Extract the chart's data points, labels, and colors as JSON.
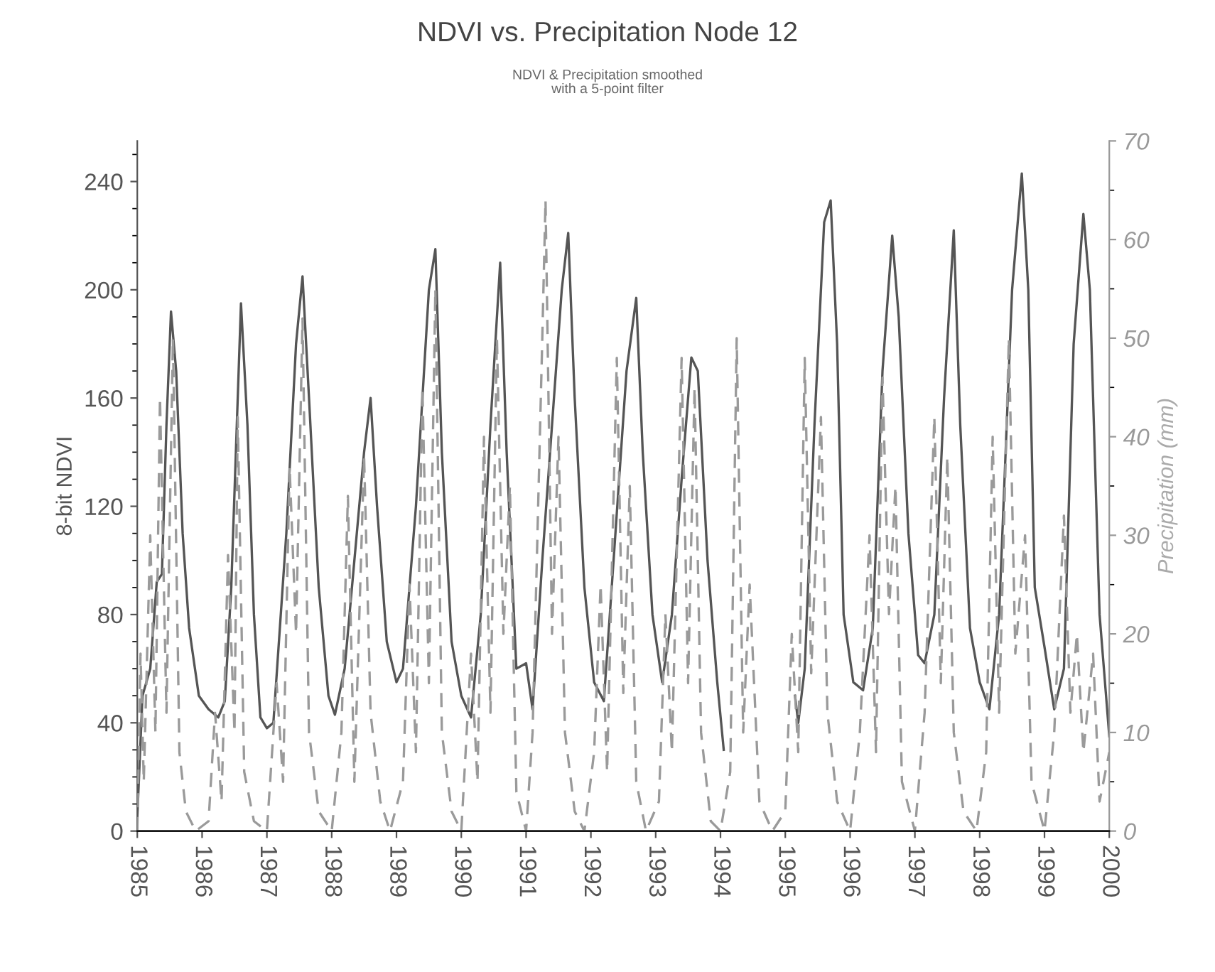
{
  "chart_data": {
    "type": "line",
    "title": "NDVI vs. Precipitation Node 12",
    "subtitle": "NDVI & Precipitation smoothed\nwith a 5-point filter",
    "ylabel": "8-bit NDVI",
    "y2label": "Precipitation (mm)",
    "xlim": [
      1985,
      2000
    ],
    "xticks": [
      1985,
      1986,
      1987,
      1988,
      1989,
      1990,
      1991,
      1992,
      1993,
      1994,
      1995,
      1996,
      1997,
      1998,
      1999,
      2000
    ],
    "ylim": [
      0,
      255
    ],
    "yticks": [
      0,
      {
        "value": 10,
        "label": null
      },
      {
        "value": 20,
        "label": null
      },
      {
        "value": 30,
        "label": null
      },
      40,
      {
        "value": 50,
        "label": null
      },
      {
        "value": 60,
        "label": null
      },
      {
        "value": 70,
        "label": null
      },
      80,
      {
        "value": 90,
        "label": null
      },
      {
        "value": 100,
        "label": null
      },
      {
        "value": 110,
        "label": null
      },
      120,
      {
        "value": 130,
        "label": null
      },
      {
        "value": 140,
        "label": null
      },
      {
        "value": 150,
        "label": null
      },
      160,
      {
        "value": 170,
        "label": null
      },
      {
        "value": 180,
        "label": null
      },
      {
        "value": 190,
        "label": null
      },
      200,
      {
        "value": 210,
        "label": null
      },
      {
        "value": 220,
        "label": null
      },
      {
        "value": 230,
        "label": null
      },
      240,
      {
        "value": 250,
        "label": null
      }
    ],
    "y2lim": [
      0,
      70
    ],
    "y2ticks": [
      0,
      {
        "value": 5,
        "label": null
      },
      10,
      {
        "value": 15,
        "label": null
      },
      20,
      {
        "value": 25,
        "label": null
      },
      30,
      {
        "value": 35,
        "label": null
      },
      40,
      {
        "value": 45,
        "label": null
      },
      50,
      {
        "value": 55,
        "label": null
      },
      60,
      {
        "value": 65,
        "label": null
      },
      70
    ],
    "grid": false,
    "legend": false,
    "marker": "none",
    "series": [
      {
        "color": "#555555",
        "line_style": "solid",
        "x": [
          1985.0,
          1985.08,
          1985.2,
          1985.3,
          1985.38,
          1985.45,
          1985.52,
          1985.6,
          1985.7,
          1985.8,
          1985.95,
          1986.1,
          1986.25,
          1986.35,
          1986.45,
          1986.6,
          1986.7,
          1986.8,
          1986.9,
          1987.0,
          1987.1,
          1987.3,
          1987.45,
          1987.55,
          1987.65,
          1987.8,
          1987.95,
          1988.05,
          1988.2,
          1988.35,
          1988.5,
          1988.6,
          1988.7,
          1988.85,
          1989.0,
          1989.1,
          1989.3,
          1989.5,
          1989.6,
          1989.7,
          1989.85,
          1990.0,
          1990.15,
          1990.3,
          1990.45,
          1990.6,
          1990.7,
          1990.85,
          1991.0,
          1991.1,
          1991.25,
          1991.4,
          1991.55,
          1991.65,
          1991.75,
          1991.9,
          1992.05,
          1992.2,
          1992.35,
          1992.55,
          1992.7,
          1992.8,
          1992.95,
          1993.1,
          1993.25,
          1993.4,
          1993.55,
          1993.65,
          1993.8,
          1993.95,
          1994.05,
          1994.6,
          1995.15,
          1995.2,
          1995.3,
          1995.45,
          1995.6,
          1995.7,
          1995.8,
          1995.9,
          1996.05,
          1996.2,
          1996.35,
          1996.5,
          1996.65,
          1996.75,
          1996.9,
          1997.05,
          1997.15,
          1997.3,
          1997.45,
          1997.6,
          1997.7,
          1997.85,
          1998.0,
          1998.15,
          1998.3,
          1998.5,
          1998.65,
          1998.75,
          1998.85,
          1999.0,
          1999.15,
          1999.3,
          1999.45,
          1999.6,
          1999.7,
          1999.85,
          2000.0
        ],
        "values": [
          5,
          50,
          60,
          92,
          95,
          150,
          192,
          170,
          110,
          75,
          50,
          45,
          42,
          48,
          90,
          195,
          150,
          80,
          42,
          38,
          40,
          110,
          180,
          205,
          160,
          90,
          50,
          43,
          60,
          100,
          140,
          160,
          120,
          70,
          55,
          60,
          120,
          200,
          215,
          140,
          70,
          50,
          42,
          80,
          150,
          210,
          140,
          60,
          62,
          45,
          100,
          150,
          200,
          221,
          160,
          90,
          55,
          48,
          100,
          170,
          197,
          140,
          80,
          55,
          80,
          130,
          175,
          170,
          100,
          55,
          30,
          null,
          50,
          40,
          60,
          150,
          225,
          233,
          180,
          80,
          55,
          52,
          75,
          170,
          220,
          190,
          110,
          65,
          62,
          80,
          160,
          222,
          150,
          75,
          55,
          45,
          80,
          200,
          243,
          200,
          90,
          68,
          45,
          60,
          180,
          228,
          200,
          80,
          35
        ]
      },
      {
        "color": "#9a9a9a",
        "line_style": "dashed",
        "axis": "y2",
        "x": [
          1985.0,
          1985.05,
          1985.1,
          1985.2,
          1985.28,
          1985.35,
          1985.45,
          1985.55,
          1985.65,
          1985.75,
          1985.9,
          1986.1,
          1986.2,
          1986.3,
          1986.4,
          1986.5,
          1986.55,
          1986.65,
          1986.8,
          1987.0,
          1987.15,
          1987.25,
          1987.35,
          1987.45,
          1987.55,
          1987.65,
          1987.8,
          1988.0,
          1988.15,
          1988.25,
          1988.35,
          1988.5,
          1988.6,
          1988.75,
          1988.9,
          1989.1,
          1989.2,
          1989.3,
          1989.4,
          1989.5,
          1989.6,
          1989.7,
          1989.85,
          1990.0,
          1990.15,
          1990.25,
          1990.35,
          1990.45,
          1990.55,
          1990.65,
          1990.75,
          1990.85,
          1991.0,
          1991.1,
          1991.25,
          1991.3,
          1991.4,
          1991.5,
          1991.6,
          1991.75,
          1991.9,
          1992.05,
          1992.15,
          1992.25,
          1992.4,
          1992.5,
          1992.6,
          1992.7,
          1992.85,
          1993.05,
          1993.15,
          1993.25,
          1993.4,
          1993.5,
          1993.6,
          1993.7,
          1993.85,
          1994.0,
          1994.15,
          1994.25,
          1994.35,
          1994.45,
          1994.6,
          1994.8,
          1995.0,
          1995.1,
          1995.2,
          1995.3,
          1995.4,
          1995.55,
          1995.65,
          1995.8,
          1996.0,
          1996.15,
          1996.3,
          1996.4,
          1996.5,
          1996.6,
          1996.7,
          1996.8,
          1997.0,
          1997.15,
          1997.3,
          1997.4,
          1997.5,
          1997.6,
          1997.75,
          1997.95,
          1998.1,
          1998.2,
          1998.3,
          1998.45,
          1998.55,
          1998.7,
          1998.8,
          1999.0,
          1999.15,
          1999.3,
          1999.4,
          1999.5,
          1999.6,
          1999.75,
          1999.85,
          2000.0
        ],
        "values": [
          0,
          18,
          5,
          30,
          10,
          44,
          12,
          50,
          8,
          2,
          0,
          1,
          12,
          3,
          28,
          10,
          42,
          6,
          1,
          0,
          15,
          5,
          37,
          20,
          52,
          10,
          2,
          0,
          10,
          34,
          5,
          38,
          12,
          3,
          0,
          5,
          25,
          8,
          45,
          15,
          55,
          10,
          2,
          0,
          18,
          5,
          40,
          12,
          50,
          20,
          35,
          4,
          0,
          10,
          50,
          64,
          20,
          40,
          10,
          2,
          0,
          8,
          25,
          6,
          48,
          14,
          35,
          5,
          0,
          3,
          22,
          8,
          48,
          15,
          45,
          10,
          1,
          0,
          6,
          50,
          10,
          25,
          3,
          0,
          2,
          20,
          8,
          48,
          16,
          42,
          12,
          3,
          0,
          10,
          30,
          8,
          46,
          22,
          35,
          5,
          0,
          12,
          42,
          15,
          38,
          10,
          2,
          0,
          8,
          40,
          12,
          50,
          18,
          30,
          5,
          0,
          10,
          32,
          12,
          20,
          8,
          18,
          3,
          8
        ]
      }
    ]
  }
}
